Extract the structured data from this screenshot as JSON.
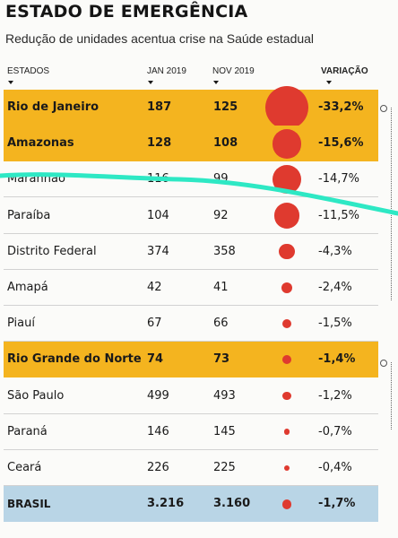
{
  "title": "ESTADO DE EMERGÊNCIA",
  "subtitle": "Redução de unidades acentua crise na Saúde estadual",
  "headers": {
    "state": "ESTADOS",
    "jan": "JAN 2019",
    "nov": "NOV 2019",
    "var": "VARIAÇÃO"
  },
  "colors": {
    "highlight": "#f4b41f",
    "total": "#b9d5e6",
    "dot": "#df3a2f",
    "annotation": "#2ee8c4"
  },
  "chart_data": {
    "type": "table",
    "title": "ESTADO DE EMERGÊNCIA",
    "subtitle": "Redução de unidades acentua crise na Saúde estadual",
    "columns": [
      "ESTADOS",
      "JAN 2019",
      "NOV 2019",
      "VARIAÇÃO"
    ],
    "rows": [
      {
        "state": "Rio de Janeiro",
        "jan": "187",
        "nov": "125",
        "var": "-33,2%",
        "var_value": -33.2,
        "highlight": true
      },
      {
        "state": "Amazonas",
        "jan": "128",
        "nov": "108",
        "var": "-15,6%",
        "var_value": -15.6,
        "highlight": true
      },
      {
        "state": "Maranhão",
        "jan": "116",
        "nov": "99",
        "var": "-14,7%",
        "var_value": -14.7,
        "highlight": false
      },
      {
        "state": "Paraíba",
        "jan": "104",
        "nov": "92",
        "var": "-11,5%",
        "var_value": -11.5,
        "highlight": false
      },
      {
        "state": "Distrito Federal",
        "jan": "374",
        "nov": "358",
        "var": "-4,3%",
        "var_value": -4.3,
        "highlight": false
      },
      {
        "state": "Amapá",
        "jan": "42",
        "nov": "41",
        "var": "-2,4%",
        "var_value": -2.4,
        "highlight": false
      },
      {
        "state": "Piauí",
        "jan": "67",
        "nov": "66",
        "var": "-1,5%",
        "var_value": -1.5,
        "highlight": false
      },
      {
        "state": "Rio Grande do Norte",
        "jan": "74",
        "nov": "73",
        "var": "-1,4%",
        "var_value": -1.4,
        "highlight": true
      },
      {
        "state": "São Paulo",
        "jan": "499",
        "nov": "493",
        "var": "-1,2%",
        "var_value": -1.2,
        "highlight": false
      },
      {
        "state": "Paraná",
        "jan": "146",
        "nov": "145",
        "var": "-0,7%",
        "var_value": -0.7,
        "highlight": false
      },
      {
        "state": "Ceará",
        "jan": "226",
        "nov": "225",
        "var": "-0,4%",
        "var_value": -0.4,
        "highlight": false
      }
    ],
    "total": {
      "state": "BRASIL",
      "jan": "3.216",
      "nov": "3.160",
      "var": "-1,7%",
      "var_value": -1.7
    }
  }
}
